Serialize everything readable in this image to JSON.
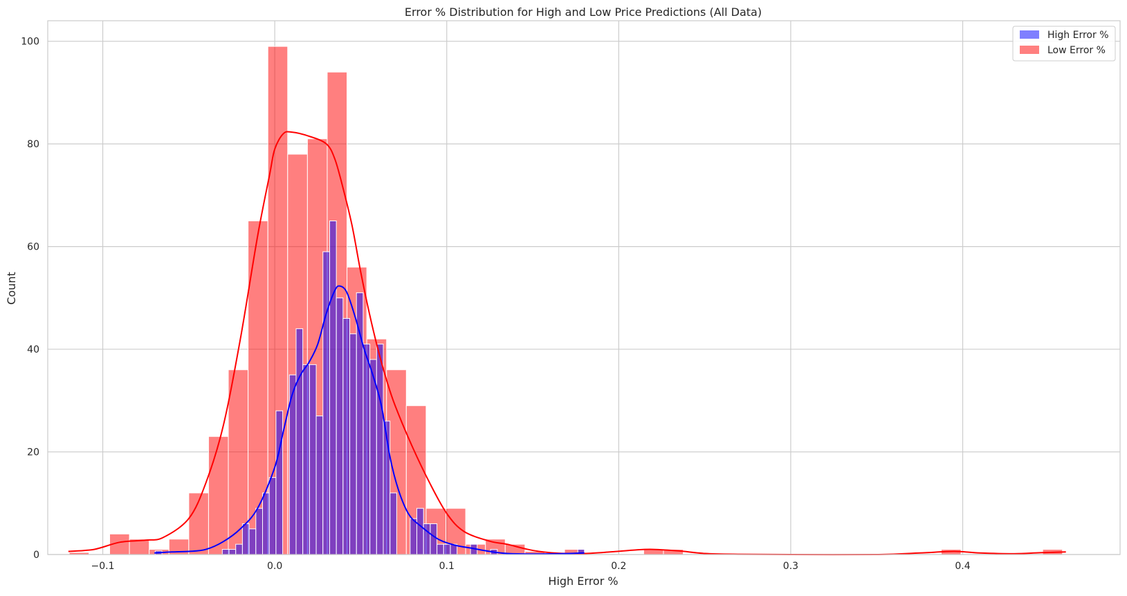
{
  "chart_data": {
    "type": "histogram",
    "title": "Error % Distribution for High and Low Price Predictions (All Data)",
    "xlabel": "High Error %",
    "ylabel": "Count",
    "xlim": [
      -0.132,
      0.4915
    ],
    "ylim": [
      0,
      104
    ],
    "xticks": [
      -0.1,
      0.0,
      0.1,
      0.2,
      0.3,
      0.4
    ],
    "xtick_labels": [
      "−0.1",
      "0.0",
      "0.1",
      "0.2",
      "0.3",
      "0.4"
    ],
    "yticks": [
      0,
      20,
      40,
      60,
      80,
      100
    ],
    "ytick_labels": [
      "0",
      "20",
      "40",
      "60",
      "80",
      "100"
    ],
    "grid": true,
    "legend_position": "top-right",
    "series": [
      {
        "name": "Low Error %",
        "color": "#ff0000",
        "bin_width": 0.0115,
        "bins": [
          {
            "x0": -0.1195,
            "count": 0.4
          },
          {
            "x0": -0.096,
            "count": 4
          },
          {
            "x0": -0.0845,
            "count": 3
          },
          {
            "x0": -0.073,
            "count": 1
          },
          {
            "x0": -0.0615,
            "count": 3
          },
          {
            "x0": -0.05,
            "count": 12
          },
          {
            "x0": -0.0385,
            "count": 23
          },
          {
            "x0": -0.027,
            "count": 36
          },
          {
            "x0": -0.0155,
            "count": 65
          },
          {
            "x0": -0.004,
            "count": 99
          },
          {
            "x0": 0.0075,
            "count": 78
          },
          {
            "x0": 0.019,
            "count": 81
          },
          {
            "x0": 0.0305,
            "count": 94
          },
          {
            "x0": 0.042,
            "count": 56
          },
          {
            "x0": 0.0535,
            "count": 42
          },
          {
            "x0": 0.065,
            "count": 36
          },
          {
            "x0": 0.0765,
            "count": 29
          },
          {
            "x0": 0.088,
            "count": 9
          },
          {
            "x0": 0.0995,
            "count": 9
          },
          {
            "x0": 0.111,
            "count": 2
          },
          {
            "x0": 0.1225,
            "count": 3
          },
          {
            "x0": 0.134,
            "count": 2
          },
          {
            "x0": 0.1455,
            "count": 0.6
          },
          {
            "x0": 0.1685,
            "count": 1
          },
          {
            "x0": 0.2145,
            "count": 1
          },
          {
            "x0": 0.226,
            "count": 1
          },
          {
            "x0": 0.3875,
            "count": 1
          },
          {
            "x0": 0.4465,
            "count": 1
          }
        ],
        "kde": [
          [
            -0.12,
            0.6
          ],
          [
            -0.105,
            1.0
          ],
          [
            -0.09,
            2.4
          ],
          [
            -0.075,
            2.8
          ],
          [
            -0.065,
            3.3
          ],
          [
            -0.05,
            7
          ],
          [
            -0.04,
            14
          ],
          [
            -0.03,
            25
          ],
          [
            -0.02,
            42
          ],
          [
            -0.01,
            62
          ],
          [
            -0.003,
            74
          ],
          [
            0.0,
            79
          ],
          [
            0.005,
            82
          ],
          [
            0.01,
            82.3
          ],
          [
            0.02,
            81.5
          ],
          [
            0.03,
            80
          ],
          [
            0.035,
            77
          ],
          [
            0.04,
            71
          ],
          [
            0.045,
            64
          ],
          [
            0.05,
            55
          ],
          [
            0.055,
            47
          ],
          [
            0.06,
            40
          ],
          [
            0.065,
            34
          ],
          [
            0.07,
            29
          ],
          [
            0.08,
            21
          ],
          [
            0.09,
            14
          ],
          [
            0.1,
            8
          ],
          [
            0.11,
            4.5
          ],
          [
            0.125,
            2.6
          ],
          [
            0.135,
            2
          ],
          [
            0.15,
            0.8
          ],
          [
            0.165,
            0.25
          ],
          [
            0.18,
            0.2
          ],
          [
            0.195,
            0.5
          ],
          [
            0.21,
            0.9
          ],
          [
            0.22,
            1.0
          ],
          [
            0.235,
            0.7
          ],
          [
            0.25,
            0.2
          ],
          [
            0.27,
            0.05
          ],
          [
            0.3,
            0
          ],
          [
            0.35,
            0
          ],
          [
            0.375,
            0.3
          ],
          [
            0.395,
            0.6
          ],
          [
            0.41,
            0.3
          ],
          [
            0.43,
            0.15
          ],
          [
            0.445,
            0.35
          ],
          [
            0.46,
            0.5
          ]
        ]
      },
      {
        "name": "High Error %",
        "color": "#0000ff",
        "bin_width": 0.0039,
        "bins": [
          {
            "x0": -0.0695,
            "count": 0.7
          },
          {
            "x0": -0.0305,
            "count": 1
          },
          {
            "x0": -0.0266,
            "count": 1
          },
          {
            "x0": -0.0227,
            "count": 2
          },
          {
            "x0": -0.0188,
            "count": 6
          },
          {
            "x0": -0.0149,
            "count": 5
          },
          {
            "x0": -0.011,
            "count": 9
          },
          {
            "x0": -0.0071,
            "count": 12
          },
          {
            "x0": -0.0032,
            "count": 15
          },
          {
            "x0": 0.0007,
            "count": 28
          },
          {
            "x0": 0.0085,
            "count": 35
          },
          {
            "x0": 0.0124,
            "count": 44
          },
          {
            "x0": 0.0163,
            "count": 37
          },
          {
            "x0": 0.0202,
            "count": 37
          },
          {
            "x0": 0.0241,
            "count": 27
          },
          {
            "x0": 0.028,
            "count": 59
          },
          {
            "x0": 0.0319,
            "count": 65
          },
          {
            "x0": 0.0358,
            "count": 50
          },
          {
            "x0": 0.0397,
            "count": 46
          },
          {
            "x0": 0.0436,
            "count": 43
          },
          {
            "x0": 0.0475,
            "count": 51
          },
          {
            "x0": 0.0514,
            "count": 41
          },
          {
            "x0": 0.0553,
            "count": 38
          },
          {
            "x0": 0.0592,
            "count": 41
          },
          {
            "x0": 0.0631,
            "count": 26
          },
          {
            "x0": 0.067,
            "count": 12
          },
          {
            "x0": 0.0787,
            "count": 7
          },
          {
            "x0": 0.0826,
            "count": 9
          },
          {
            "x0": 0.0865,
            "count": 6
          },
          {
            "x0": 0.0904,
            "count": 6
          },
          {
            "x0": 0.0943,
            "count": 2
          },
          {
            "x0": 0.0982,
            "count": 2
          },
          {
            "x0": 0.1021,
            "count": 2
          },
          {
            "x0": 0.1138,
            "count": 2
          },
          {
            "x0": 0.1255,
            "count": 1
          },
          {
            "x0": 0.1762,
            "count": 1
          }
        ],
        "kde": [
          [
            -0.07,
            0.3
          ],
          [
            -0.06,
            0.5
          ],
          [
            -0.05,
            0.6
          ],
          [
            -0.04,
            1
          ],
          [
            -0.03,
            2.5
          ],
          [
            -0.02,
            5
          ],
          [
            -0.01,
            9
          ],
          [
            0.0,
            17
          ],
          [
            0.005,
            24
          ],
          [
            0.01,
            31
          ],
          [
            0.015,
            35
          ],
          [
            0.02,
            37.5
          ],
          [
            0.025,
            41
          ],
          [
            0.03,
            47
          ],
          [
            0.035,
            51.5
          ],
          [
            0.038,
            52.3
          ],
          [
            0.042,
            51
          ],
          [
            0.047,
            46
          ],
          [
            0.052,
            40
          ],
          [
            0.057,
            35
          ],
          [
            0.062,
            29
          ],
          [
            0.067,
            19
          ],
          [
            0.072,
            12.5
          ],
          [
            0.078,
            7.8
          ],
          [
            0.085,
            5.5
          ],
          [
            0.095,
            3
          ],
          [
            0.105,
            1.8
          ],
          [
            0.115,
            1.2
          ],
          [
            0.125,
            0.6
          ],
          [
            0.135,
            0.2
          ],
          [
            0.15,
            0.1
          ],
          [
            0.165,
            0.15
          ],
          [
            0.18,
            0.3
          ]
        ]
      }
    ],
    "legend": [
      {
        "label": "High Error %",
        "color": "#0000ff"
      },
      {
        "label": "Low Error %",
        "color": "#ff0000"
      }
    ]
  }
}
